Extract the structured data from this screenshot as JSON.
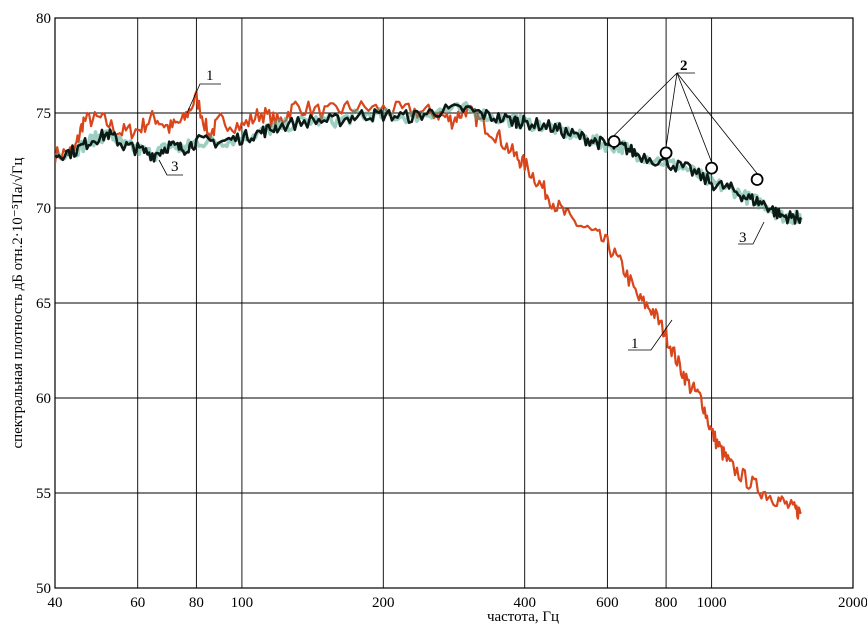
{
  "chart_data": {
    "type": "line",
    "x_scale": "log",
    "xlim": [
      40,
      2000
    ],
    "ylim": [
      50,
      80
    ],
    "x_ticks": [
      40,
      60,
      80,
      100,
      200,
      400,
      600,
      800,
      1000,
      2000
    ],
    "y_ticks": [
      50,
      55,
      60,
      65,
      70,
      75,
      80
    ],
    "grid": true,
    "xlabel": "частота, Гц",
    "ylabel": "спектральная плотность дБ отн.2·10⁻⁵Па/√Гц",
    "series": [
      {
        "key": "1",
        "color": "#d9461c",
        "points": [
          [
            40,
            72.8
          ],
          [
            44,
            73.0
          ],
          [
            46,
            74.6
          ],
          [
            50,
            74.7
          ],
          [
            55,
            74.0
          ],
          [
            60,
            74.1
          ],
          [
            65,
            74.8
          ],
          [
            70,
            74.2
          ],
          [
            75,
            74.6
          ],
          [
            80,
            75.8
          ],
          [
            85,
            73.8
          ],
          [
            90,
            74.6
          ],
          [
            100,
            74.3
          ],
          [
            110,
            75.0
          ],
          [
            120,
            74.5
          ],
          [
            130,
            75.4
          ],
          [
            150,
            75.0
          ],
          [
            170,
            75.3
          ],
          [
            200,
            75.2
          ],
          [
            230,
            75.1
          ],
          [
            260,
            75.0
          ],
          [
            280,
            74.6
          ],
          [
            300,
            75.2
          ],
          [
            320,
            74.6
          ],
          [
            350,
            73.8
          ],
          [
            380,
            72.8
          ],
          [
            400,
            72.3
          ],
          [
            430,
            71.3
          ],
          [
            460,
            70.3
          ],
          [
            500,
            69.4
          ],
          [
            550,
            68.8
          ],
          [
            600,
            68.1
          ],
          [
            650,
            66.8
          ],
          [
            700,
            65.2
          ],
          [
            750,
            64.6
          ],
          [
            800,
            63.3
          ],
          [
            850,
            61.8
          ],
          [
            900,
            60.6
          ],
          [
            950,
            60.0
          ],
          [
            1000,
            58.2
          ],
          [
            1050,
            57.2
          ],
          [
            1100,
            56.4
          ],
          [
            1200,
            55.6
          ],
          [
            1300,
            55.0
          ],
          [
            1400,
            54.6
          ],
          [
            1500,
            54.1
          ],
          [
            1550,
            54.0
          ]
        ]
      },
      {
        "key": "2",
        "color": "#000000",
        "marker": "circle",
        "markers_at": [
          [
            620,
            73.5
          ],
          [
            800,
            72.9
          ],
          [
            1000,
            72.1
          ],
          [
            1250,
            71.5
          ]
        ]
      },
      {
        "key": "3",
        "color": "#0b1a14",
        "points": [
          [
            40,
            72.8
          ],
          [
            44,
            73.0
          ],
          [
            48,
            73.6
          ],
          [
            52,
            73.9
          ],
          [
            56,
            73.3
          ],
          [
            60,
            73.1
          ],
          [
            65,
            72.8
          ],
          [
            70,
            73.3
          ],
          [
            75,
            73.1
          ],
          [
            80,
            73.5
          ],
          [
            90,
            73.5
          ],
          [
            100,
            73.7
          ],
          [
            110,
            74.0
          ],
          [
            120,
            74.3
          ],
          [
            140,
            74.6
          ],
          [
            160,
            74.6
          ],
          [
            180,
            74.9
          ],
          [
            200,
            74.9
          ],
          [
            230,
            74.8
          ],
          [
            260,
            75.1
          ],
          [
            300,
            75.2
          ],
          [
            340,
            74.8
          ],
          [
            380,
            74.6
          ],
          [
            400,
            74.5
          ],
          [
            450,
            74.3
          ],
          [
            500,
            73.9
          ],
          [
            550,
            73.6
          ],
          [
            600,
            73.3
          ],
          [
            650,
            73.2
          ],
          [
            700,
            72.8
          ],
          [
            800,
            72.4
          ],
          [
            900,
            72.0
          ],
          [
            1000,
            71.3
          ],
          [
            1100,
            71.0
          ],
          [
            1200,
            70.5
          ],
          [
            1300,
            70.2
          ],
          [
            1400,
            69.6
          ],
          [
            1500,
            69.5
          ],
          [
            1550,
            69.5
          ]
        ]
      }
    ]
  },
  "annotations": {
    "label_1_top": "1",
    "label_1_bottom": "1",
    "label_2": "2",
    "label_3_left": "3",
    "label_3_right": "3"
  }
}
